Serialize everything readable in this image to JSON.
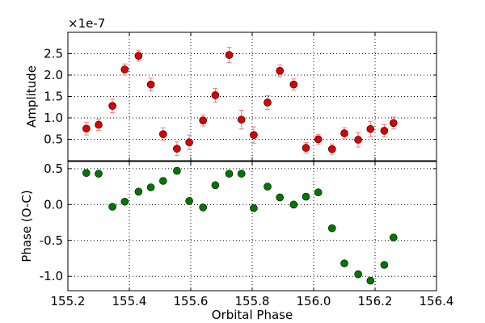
{
  "chart_data": [
    {
      "type": "scatter",
      "panel": "top",
      "ylabel": "Amplitude",
      "offset_text": "×1e-7",
      "xlim": [
        155.2,
        156.4
      ],
      "ylim": [
        0,
        3.0
      ],
      "yticks": [
        "0.5",
        "1.0",
        "1.5",
        "2.0",
        "2.5"
      ],
      "ytick_values": [
        0.5,
        1.0,
        1.5,
        2.0,
        2.5
      ],
      "grid": true,
      "marker_color": "#dd0000",
      "errorbar_color": "#ff7777",
      "series": [
        {
          "x": [
            155.26,
            155.3,
            155.345,
            155.385,
            155.43,
            155.47,
            155.51,
            155.555,
            155.595,
            155.64,
            155.68,
            155.725,
            155.765,
            155.805,
            155.85,
            155.89,
            155.935,
            155.975,
            156.015,
            156.06,
            156.1,
            156.145,
            156.185,
            156.23,
            156.26
          ],
          "y": [
            0.75,
            0.84,
            1.28,
            2.13,
            2.45,
            1.78,
            0.62,
            0.28,
            0.43,
            0.94,
            1.53,
            2.47,
            0.96,
            0.6,
            1.36,
            2.1,
            1.78,
            0.3,
            0.5,
            0.27,
            0.64,
            0.49,
            0.74,
            0.7,
            0.88
          ],
          "err": [
            0.15,
            0.13,
            0.16,
            0.13,
            0.12,
            0.15,
            0.15,
            0.16,
            0.17,
            0.13,
            0.16,
            0.18,
            0.22,
            0.19,
            0.16,
            0.14,
            0.13,
            0.12,
            0.11,
            0.12,
            0.13,
            0.17,
            0.18,
            0.14,
            0.14
          ]
        }
      ]
    },
    {
      "type": "scatter",
      "panel": "bottom",
      "xlabel": "Orbital Phase",
      "ylabel": "Phase (O-C)",
      "xlim": [
        155.2,
        156.4
      ],
      "ylim": [
        -1.2,
        0.6
      ],
      "xticks": [
        "155.2",
        "155.4",
        "155.6",
        "155.8",
        "156.0",
        "156.2",
        "156.4"
      ],
      "xtick_values": [
        155.2,
        155.4,
        155.6,
        155.8,
        156.0,
        156.2,
        156.4
      ],
      "yticks": [
        "-1.0",
        "-0.5",
        "0.0",
        "0.5"
      ],
      "ytick_values": [
        -1.0,
        -0.5,
        0.0,
        0.5
      ],
      "grid": true,
      "marker_color": "#007700",
      "series": [
        {
          "x": [
            155.26,
            155.3,
            155.345,
            155.385,
            155.43,
            155.47,
            155.51,
            155.555,
            155.595,
            155.64,
            155.68,
            155.725,
            155.765,
            155.805,
            155.85,
            155.89,
            155.935,
            155.975,
            156.015,
            156.06,
            156.1,
            156.145,
            156.185,
            156.23,
            156.26
          ],
          "y": [
            0.44,
            0.43,
            -0.03,
            0.04,
            0.18,
            0.24,
            0.33,
            0.47,
            0.05,
            -0.04,
            0.27,
            0.43,
            0.43,
            -0.05,
            0.25,
            0.1,
            0.0,
            0.11,
            0.17,
            -0.33,
            -0.82,
            -0.97,
            -1.06,
            -0.84,
            -0.46
          ]
        }
      ]
    }
  ]
}
